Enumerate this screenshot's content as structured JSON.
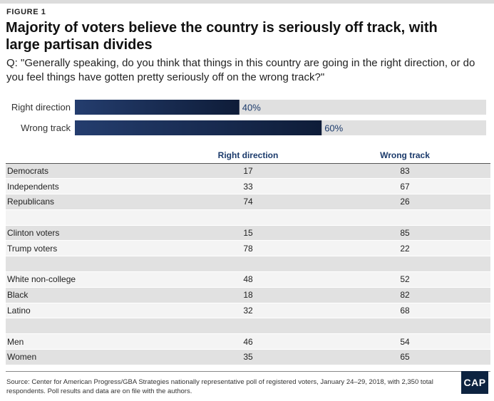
{
  "figure_label": "FIGURE 1",
  "title": "Majority of voters believe the country is seriously off track, with large partisan divides",
  "question": "Q: \"Generally speaking, do you think that things in this country are going in the right direction, or do you feel things have gotten pretty seriously off on the wrong track?\"",
  "colors": {
    "bar_start": "#243d6e",
    "bar_end": "#0e1c38",
    "track": "#e0e0e0",
    "label": "#1b3a6b"
  },
  "chart_data": [
    {
      "type": "bar",
      "orientation": "horizontal",
      "categories": [
        "Right direction",
        "Wrong track"
      ],
      "values": [
        40,
        60
      ],
      "value_labels": [
        "40%",
        "60%"
      ],
      "xlim": [
        0,
        100
      ],
      "title": "",
      "xlabel": "",
      "ylabel": "",
      "grid": false
    },
    {
      "type": "table",
      "columns": [
        "",
        "Right direction",
        "Wrong track"
      ],
      "rows": [
        [
          "Democrats",
          "17",
          "83"
        ],
        [
          "Independents",
          "33",
          "67"
        ],
        [
          "Republicans",
          "74",
          "26"
        ],
        [
          "",
          "",
          ""
        ],
        [
          "Clinton voters",
          "15",
          "85"
        ],
        [
          "Trump voters",
          "78",
          "22"
        ],
        [
          "",
          "",
          ""
        ],
        [
          "White non-college",
          "48",
          "52"
        ],
        [
          "Black",
          "18",
          "82"
        ],
        [
          "Latino",
          "32",
          "68"
        ],
        [
          "",
          "",
          ""
        ],
        [
          "Men",
          "46",
          "54"
        ],
        [
          "Women",
          "35",
          "65"
        ]
      ]
    }
  ],
  "source": "Source: Center for American Progress/GBA Strategies nationally representative poll of registered voters, January 24–29, 2018, with 2,350 total respondents. Poll results and data are on file with the authors.",
  "logo_text": "CAP"
}
